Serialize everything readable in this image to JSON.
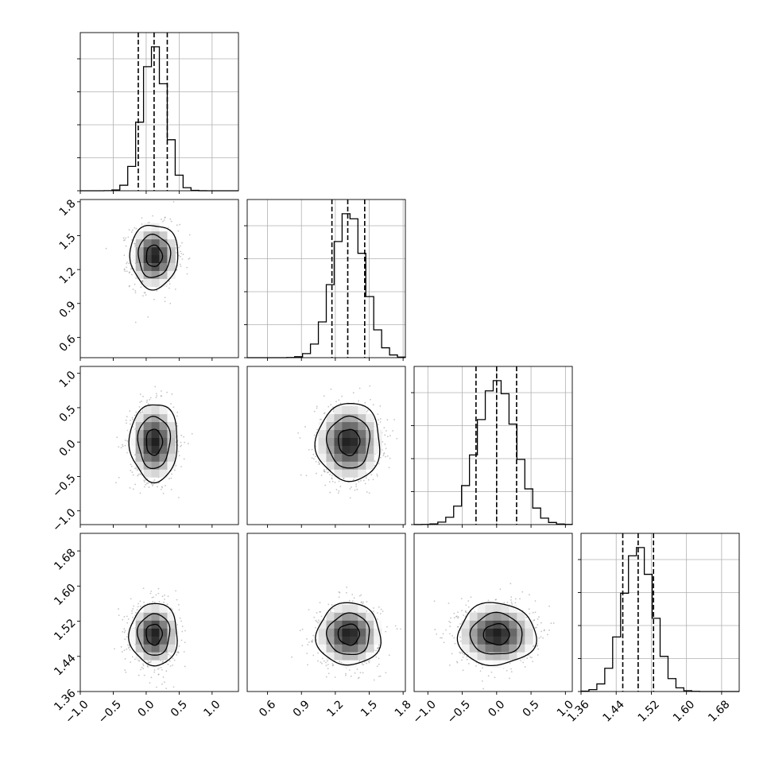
{
  "chart_data": {
    "type": "corner",
    "grid": true,
    "colors": {
      "hist_line": "#000000",
      "quantile_line": "#000000",
      "contour": "#000000",
      "scatter": "#7f7f7f",
      "grid": "#b0b0b0"
    },
    "parameters": [
      {
        "mean": 0.12,
        "sd": 0.18,
        "range": [
          -1.0,
          1.4
        ],
        "ticks": [
          -1.0,
          -0.5,
          0.0,
          0.5,
          1.0
        ],
        "tick_labels": [
          "−1.0",
          "−0.5",
          "0.0",
          "0.5",
          "1.0"
        ],
        "quantiles": [
          -0.12,
          0.12,
          0.32
        ]
      },
      {
        "mean": 1.32,
        "sd": 0.14,
        "range": [
          0.42,
          1.82
        ],
        "ticks": [
          0.6,
          0.9,
          1.2,
          1.5,
          1.8
        ],
        "tick_labels": [
          "0.6",
          "0.9",
          "1.2",
          "1.5",
          "1.8"
        ],
        "quantiles": [
          1.17,
          1.31,
          1.46
        ]
      },
      {
        "mean": 0.0,
        "sd": 0.28,
        "range": [
          -1.2,
          1.1
        ],
        "ticks": [
          -1.0,
          -0.5,
          0.0,
          0.5,
          1.0
        ],
        "tick_labels": [
          "−1.0",
          "−0.5",
          "0.0",
          "0.5",
          "1.0"
        ],
        "quantiles": [
          -0.3,
          0.0,
          0.29
        ]
      },
      {
        "mean": 1.49,
        "sd": 0.035,
        "range": [
          1.36,
          1.72
        ],
        "ticks": [
          1.36,
          1.44,
          1.52,
          1.6,
          1.68
        ],
        "tick_labels": [
          "1.36",
          "1.44",
          "1.52",
          "1.60",
          "1.68"
        ],
        "quantiles": [
          1.455,
          1.49,
          1.525
        ]
      }
    ],
    "contour_levels_sigma": [
      0.5,
      1.0,
      1.5,
      2.0
    ],
    "contours_drawn": [
      0.5,
      1.0,
      1.5
    ]
  }
}
